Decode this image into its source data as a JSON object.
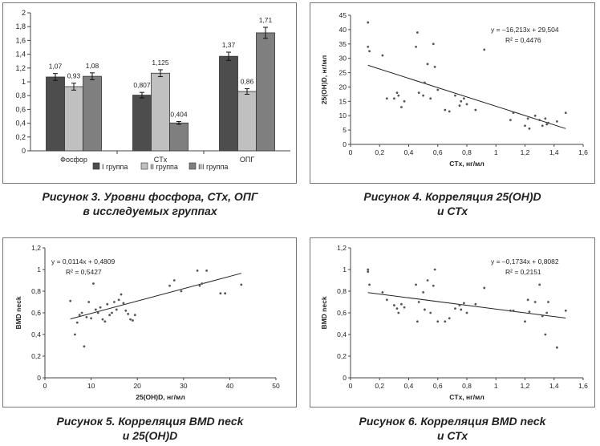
{
  "chart_data": [
    {
      "type": "bar",
      "categories": [
        "Фосфор",
        "CTx",
        "ОПГ"
      ],
      "ylim": [
        0,
        2
      ],
      "yticks": [
        "0",
        "0,2",
        "0,4",
        "0,6",
        "0,8",
        "1",
        "1,2",
        "1,4",
        "1,6",
        "1,8",
        "2"
      ],
      "grid": false,
      "legend": "bottom",
      "series": [
        {
          "name": "I группа",
          "color": "#4d4d4d",
          "values": [
            1.07,
            0.807,
            1.37
          ],
          "labels": [
            "1,07",
            "0,807",
            "1,37"
          ],
          "errors": [
            0.05,
            0.04,
            0.06
          ]
        },
        {
          "name": "II группа",
          "color": "#c0c0c0",
          "values": [
            0.93,
            1.125,
            0.86
          ],
          "labels": [
            "0,93",
            "1,125",
            "0,86"
          ],
          "errors": [
            0.05,
            0.05,
            0.04
          ]
        },
        {
          "name": "III группа",
          "color": "#7f7f7f",
          "values": [
            1.08,
            0.404,
            1.71
          ],
          "labels": [
            "1,08",
            "0,404",
            "1,71"
          ],
          "errors": [
            0.05,
            0.02,
            0.08
          ]
        }
      ],
      "caption": [
        "Рисунок 3. Уровни фосфора, СТх, ОПГ",
        "в исследуемых группах"
      ]
    },
    {
      "type": "scatter",
      "xlabel": "CTx, нг/мл",
      "ylabel": "25(OH)D, нг/мл",
      "xlim": [
        0,
        1.6
      ],
      "ylim": [
        0,
        45
      ],
      "xticks": [
        "0",
        "0,2",
        "0,4",
        "0,6",
        "0,8",
        "1",
        "1,2",
        "1,4",
        "1,6"
      ],
      "yticks": [
        "0",
        "5",
        "10",
        "15",
        "20",
        "25",
        "30",
        "35",
        "40",
        "45"
      ],
      "trendline": {
        "slope": -16.213,
        "intercept": 29.504,
        "x_range": [
          0.12,
          1.48
        ]
      },
      "equation": "y = –16,213x + 29,504",
      "r2": "R² = 0,4476",
      "points": [
        [
          0.12,
          42.5
        ],
        [
          0.12,
          34
        ],
        [
          0.13,
          32.5
        ],
        [
          0.22,
          31
        ],
        [
          0.25,
          16
        ],
        [
          0.3,
          16
        ],
        [
          0.32,
          18
        ],
        [
          0.33,
          17
        ],
        [
          0.35,
          13
        ],
        [
          0.37,
          15
        ],
        [
          0.45,
          34
        ],
        [
          0.46,
          39
        ],
        [
          0.47,
          18
        ],
        [
          0.5,
          17
        ],
        [
          0.51,
          21.5
        ],
        [
          0.53,
          28
        ],
        [
          0.55,
          16
        ],
        [
          0.57,
          35
        ],
        [
          0.58,
          27
        ],
        [
          0.6,
          19
        ],
        [
          0.65,
          12
        ],
        [
          0.68,
          11.5
        ],
        [
          0.72,
          17
        ],
        [
          0.75,
          13.5
        ],
        [
          0.76,
          15
        ],
        [
          0.78,
          16
        ],
        [
          0.8,
          14
        ],
        [
          0.86,
          12
        ],
        [
          0.92,
          33
        ],
        [
          1.1,
          8.5
        ],
        [
          1.12,
          11
        ],
        [
          1.2,
          6.5
        ],
        [
          1.22,
          9
        ],
        [
          1.23,
          5.5
        ],
        [
          1.27,
          10
        ],
        [
          1.3,
          8.5
        ],
        [
          1.32,
          6.5
        ],
        [
          1.34,
          9
        ],
        [
          1.35,
          7
        ],
        [
          1.36,
          7.5
        ],
        [
          1.42,
          8
        ],
        [
          1.48,
          11
        ]
      ],
      "caption": [
        "Рисунок 4. Корреляция 25(OH)D",
        "и СТх"
      ]
    },
    {
      "type": "scatter",
      "xlabel": "25(OH)D, нг/мл",
      "ylabel": "BMD neck",
      "xlim": [
        0,
        50
      ],
      "ylim": [
        0,
        1.2
      ],
      "xticks": [
        "0",
        "10",
        "20",
        "30",
        "40",
        "50"
      ],
      "yticks": [
        "0",
        "0,2",
        "0,4",
        "0,6",
        "0,8",
        "1",
        "1,2"
      ],
      "trendline": {
        "slope": 0.0114,
        "intercept": 0.4809,
        "x_range": [
          5.5,
          42.5
        ]
      },
      "equation": "y = 0,0114x + 0,4809",
      "r2": "R² = 0,5427",
      "points": [
        [
          5.5,
          0.71
        ],
        [
          6.5,
          0.4
        ],
        [
          7,
          0.51
        ],
        [
          7.5,
          0.58
        ],
        [
          8,
          0.6
        ],
        [
          8.5,
          0.29
        ],
        [
          9,
          0.56
        ],
        [
          9.5,
          0.7
        ],
        [
          10,
          0.55
        ],
        [
          10.5,
          0.87
        ],
        [
          11,
          0.63
        ],
        [
          11.5,
          0.6
        ],
        [
          12,
          0.65
        ],
        [
          12.5,
          0.54
        ],
        [
          13,
          0.52
        ],
        [
          13.5,
          0.68
        ],
        [
          14,
          0.58
        ],
        [
          14.5,
          0.6
        ],
        [
          15,
          0.7
        ],
        [
          15.5,
          0.63
        ],
        [
          16,
          0.72
        ],
        [
          16.5,
          0.77
        ],
        [
          17,
          0.69
        ],
        [
          17.5,
          0.62
        ],
        [
          18,
          0.59
        ],
        [
          18.5,
          0.54
        ],
        [
          19,
          0.53
        ],
        [
          19.5,
          0.58
        ],
        [
          27,
          0.85
        ],
        [
          28,
          0.9
        ],
        [
          29.5,
          0.8
        ],
        [
          33,
          0.99
        ],
        [
          33.5,
          0.85
        ],
        [
          34,
          0.87
        ],
        [
          35,
          0.99
        ],
        [
          38,
          0.78
        ],
        [
          39,
          0.78
        ],
        [
          42.5,
          0.86
        ]
      ],
      "caption": [
        "Рисунок 5. Корреляция BMD neck",
        "и 25(OH)D"
      ]
    },
    {
      "type": "scatter",
      "xlabel": "CTx, нг/мл",
      "ylabel": "BMD neck",
      "xlim": [
        0,
        1.6
      ],
      "ylim": [
        0,
        1.2
      ],
      "xticks": [
        "0",
        "0,2",
        "0,4",
        "0,6",
        "0,8",
        "1",
        "1,2",
        "1,4",
        "1,6"
      ],
      "yticks": [
        "0",
        "0,2",
        "0,4",
        "0,6",
        "0,8",
        "1",
        "1,2"
      ],
      "trendline": {
        "slope": -0.1734,
        "intercept": 0.8082,
        "x_range": [
          0.12,
          1.48
        ]
      },
      "equation": "y = –0,1734x + 0,8082",
      "r2": "R² = 0,2151",
      "points": [
        [
          0.12,
          1.0
        ],
        [
          0.12,
          0.98
        ],
        [
          0.13,
          0.86
        ],
        [
          0.22,
          0.79
        ],
        [
          0.25,
          0.72
        ],
        [
          0.3,
          0.67
        ],
        [
          0.32,
          0.64
        ],
        [
          0.33,
          0.6
        ],
        [
          0.35,
          0.68
        ],
        [
          0.37,
          0.65
        ],
        [
          0.45,
          0.86
        ],
        [
          0.46,
          0.52
        ],
        [
          0.47,
          0.7
        ],
        [
          0.5,
          0.79
        ],
        [
          0.51,
          0.63
        ],
        [
          0.53,
          0.9
        ],
        [
          0.55,
          0.6
        ],
        [
          0.57,
          0.85
        ],
        [
          0.58,
          1.0
        ],
        [
          0.6,
          0.52
        ],
        [
          0.65,
          0.52
        ],
        [
          0.68,
          0.55
        ],
        [
          0.72,
          0.64
        ],
        [
          0.75,
          0.67
        ],
        [
          0.76,
          0.63
        ],
        [
          0.78,
          0.69
        ],
        [
          0.8,
          0.6
        ],
        [
          0.86,
          0.68
        ],
        [
          0.92,
          0.83
        ],
        [
          1.1,
          0.62
        ],
        [
          1.12,
          0.62
        ],
        [
          1.2,
          0.52
        ],
        [
          1.22,
          0.72
        ],
        [
          1.23,
          0.61
        ],
        [
          1.27,
          0.7
        ],
        [
          1.3,
          0.86
        ],
        [
          1.32,
          0.57
        ],
        [
          1.34,
          0.4
        ],
        [
          1.35,
          0.6
        ],
        [
          1.36,
          0.7
        ],
        [
          1.42,
          0.28
        ],
        [
          1.48,
          0.62
        ]
      ],
      "caption": [
        "Рисунок 6. Корреляция BMD neck",
        "и СТх"
      ]
    }
  ]
}
